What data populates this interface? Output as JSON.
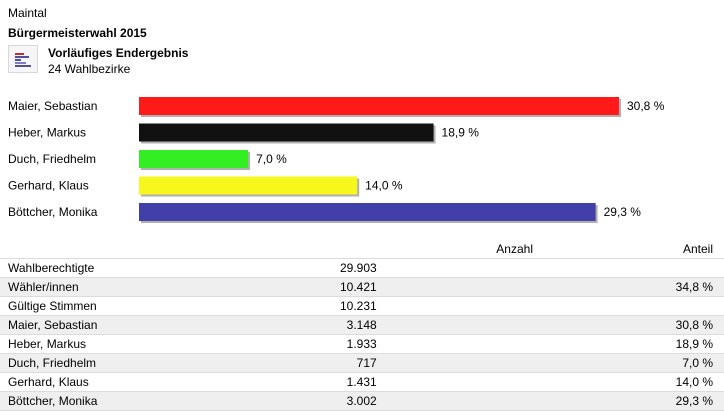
{
  "header": {
    "place": "Maintal",
    "election": "Bürgermeisterwahl 2015",
    "status": "Vorläufiges Endergebnis",
    "districts": "24 Wahlbezirke"
  },
  "colors": {
    "bar_shadow": "#b0b0b0",
    "row_shade": "#efefef",
    "row_border": "#dcdcdc"
  },
  "chart_data": {
    "type": "bar",
    "orientation": "horizontal",
    "categories": [
      "Maier, Sebastian",
      "Heber, Markus",
      "Duch, Friedhelm",
      "Gerhard, Klaus",
      "Böttcher, Monika"
    ],
    "values": [
      30.8,
      18.9,
      7.0,
      14.0,
      29.3
    ],
    "value_labels": [
      "30,8 %",
      "18,9 %",
      "7,0 %",
      "14,0 %",
      "29,3 %"
    ],
    "colors": [
      "#ff1a1a",
      "#111111",
      "#33ee22",
      "#f7f71e",
      "#4040a8"
    ],
    "xlim": [
      0,
      30.8
    ],
    "grid": false,
    "legend": "none"
  },
  "table": {
    "headers": {
      "count": "Anzahl",
      "share": "Anteil"
    },
    "rows": [
      {
        "name": "Wahlberechtigte",
        "count": "29.903",
        "share": ""
      },
      {
        "name": "Wähler/innen",
        "count": "10.421",
        "share": "34,8 %"
      },
      {
        "name": "Gültige Stimmen",
        "count": "10.231",
        "share": ""
      },
      {
        "name": "Maier, Sebastian",
        "count": "3.148",
        "share": "30,8 %"
      },
      {
        "name": "Heber, Markus",
        "count": "1.933",
        "share": "18,9 %"
      },
      {
        "name": "Duch, Friedhelm",
        "count": "717",
        "share": "7,0 %"
      },
      {
        "name": "Gerhard, Klaus",
        "count": "1.431",
        "share": "14,0 %"
      },
      {
        "name": "Böttcher, Monika",
        "count": "3.002",
        "share": "29,3 %"
      }
    ]
  }
}
